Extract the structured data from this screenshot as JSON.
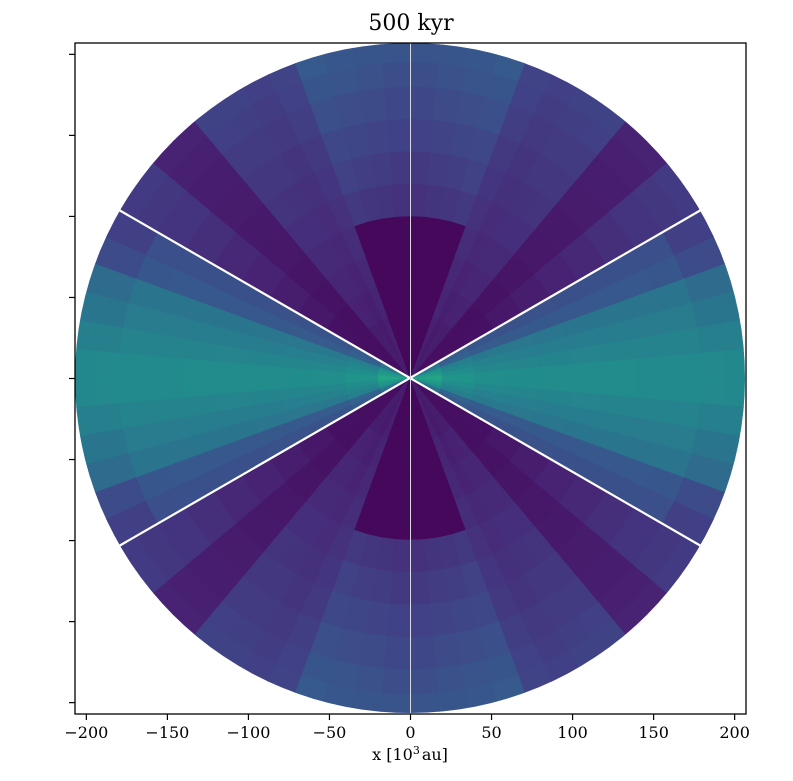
{
  "chart_data": {
    "type": "heatmap",
    "title": "500 kyr",
    "xlabel_prefix": "x [10",
    "xlabel_exponent": "3",
    "xlabel_suffix": "au]",
    "ylabel": "",
    "xlim": [
      -207,
      207
    ],
    "ylim": [
      -207,
      207
    ],
    "x_ticks": [
      -200,
      -150,
      -100,
      -50,
      0,
      50,
      100,
      150,
      200
    ],
    "x_tick_labels": [
      "−200",
      "−150",
      "−100",
      "−50",
      "0",
      "50",
      "100",
      "150",
      "200"
    ],
    "y_ticks": [
      -200,
      -150,
      -100,
      -50,
      0,
      50,
      100,
      150,
      200
    ],
    "y_tick_labels": [
      "",
      "",
      "",
      "",
      "",
      "",
      "",
      "",
      ""
    ],
    "colormap": "viridis",
    "domain_radius": 207,
    "boundary_lines_angle_deg": [
      30,
      150
    ],
    "midplane_symmetric": true,
    "description_grid": {
      "radial_edges": [
        0,
        20,
        40,
        60,
        80,
        100,
        120,
        140,
        160,
        180,
        195,
        207
      ],
      "theta_edges_deg_from_midplane": [
        0,
        5,
        10,
        15,
        20,
        25,
        30,
        35,
        40,
        45,
        50,
        55,
        60,
        65,
        70,
        75,
        80,
        85,
        90
      ]
    },
    "colors": {
      "axes": "#000000",
      "boundary_line": "#ffffff",
      "center_line": "#d8d8e0"
    }
  }
}
